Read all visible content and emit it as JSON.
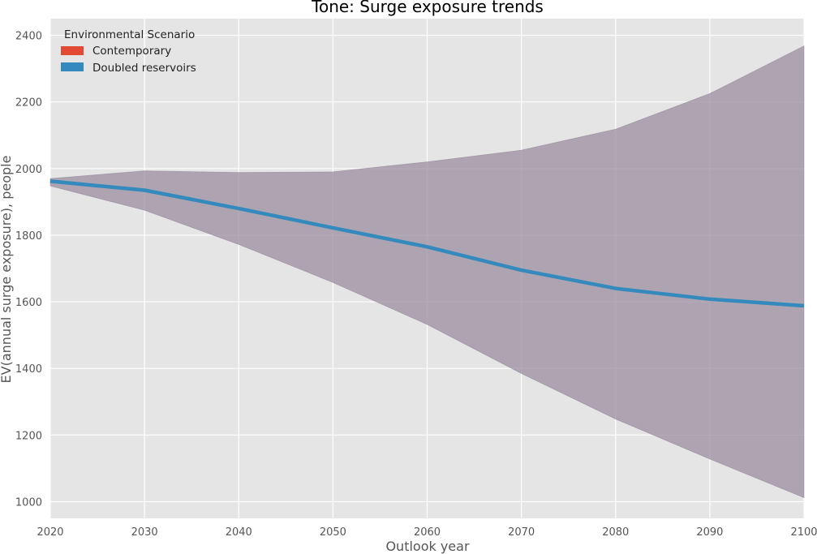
{
  "chart_data": {
    "type": "line",
    "title": "Tone: Surge exposure trends",
    "xlabel": "Outlook year",
    "ylabel": "EV(annual surge exposure), people",
    "xlim": [
      2020,
      2100
    ],
    "ylim": [
      950,
      2450
    ],
    "x_ticks": [
      "2020",
      "2030",
      "2040",
      "2050",
      "2060",
      "2070",
      "2080",
      "2090",
      "2100"
    ],
    "y_ticks": [
      "1000",
      "1200",
      "1400",
      "1600",
      "1800",
      "2000",
      "2200",
      "2400"
    ],
    "x": [
      2020,
      2030,
      2040,
      2050,
      2060,
      2070,
      2080,
      2090,
      2100
    ],
    "grid": true,
    "legend": {
      "title": "Environmental Scenario",
      "placement": "top-left",
      "entries": [
        {
          "label": "Contemporary",
          "color": "#E24A33"
        },
        {
          "label": "Doubled reservoirs",
          "color": "#348ABD"
        }
      ]
    },
    "series": [
      {
        "name": "Doubled reservoirs",
        "color": "#348ABD",
        "values": [
          1962,
          1935,
          1880,
          1822,
          1765,
          1695,
          1640,
          1608,
          1588
        ]
      }
    ],
    "band": {
      "color": "#9B8E9F",
      "upper": [
        1970,
        1993,
        1988,
        1990,
        2020,
        2055,
        2118,
        2225,
        2368
      ],
      "lower": [
        1948,
        1875,
        1772,
        1658,
        1532,
        1385,
        1248,
        1128,
        1012
      ]
    },
    "colors": {
      "plot_background": "#E5E5E5",
      "grid": "#FFFFFF"
    }
  }
}
